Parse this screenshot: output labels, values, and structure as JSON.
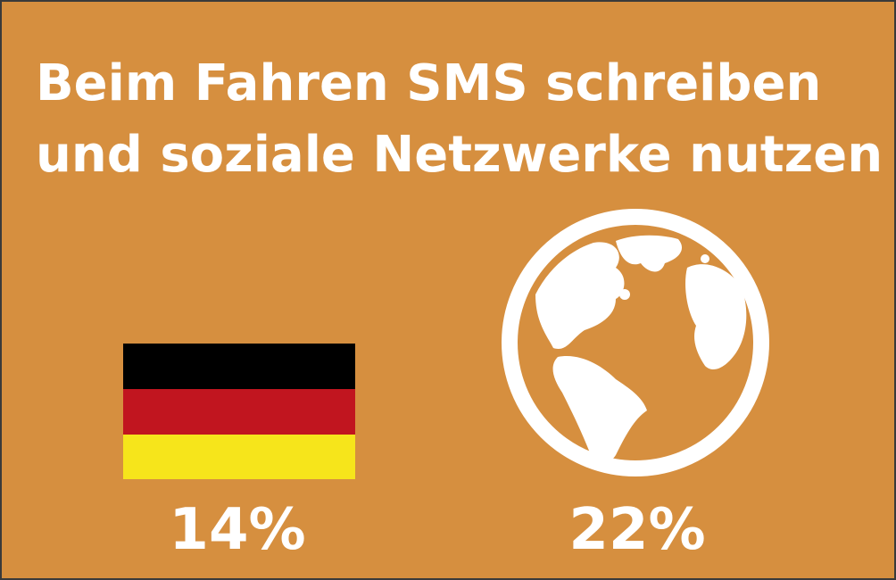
{
  "header": {
    "title": [
      "Beim Fahren SMS schreiben",
      "und soziale Netzwerke nutzen"
    ]
  },
  "items": [
    {
      "label": "14%"
    },
    {
      "label": "22%"
    }
  ]
}
